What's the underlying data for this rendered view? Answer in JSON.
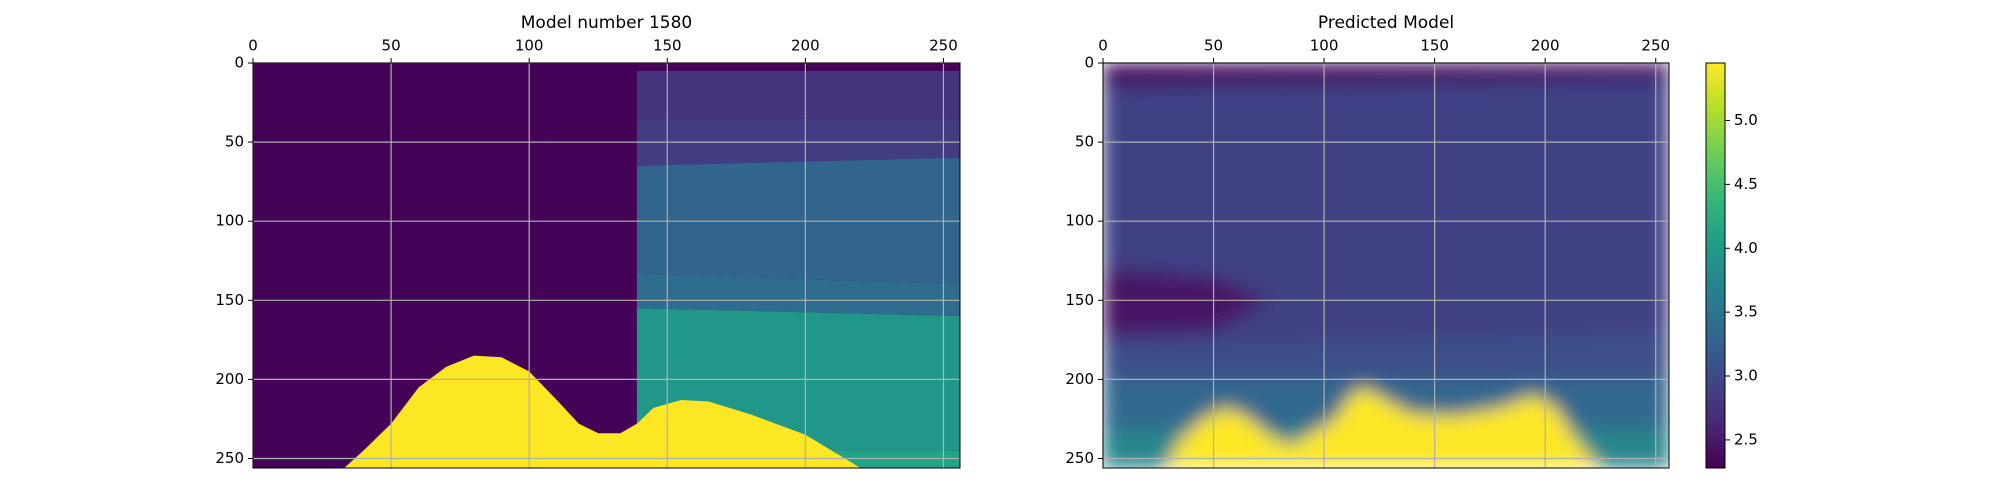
{
  "chart_data": [
    {
      "type": "heatmap",
      "title": "Model number 1580",
      "xlim": [
        0,
        256
      ],
      "ylim": [
        256,
        0
      ],
      "xticks": [
        0,
        50,
        100,
        150,
        200,
        250
      ],
      "yticks": [
        0,
        50,
        100,
        150,
        200,
        250
      ],
      "grid": true,
      "smooth": false,
      "regions": [
        {
          "value": 2.3,
          "points": [
            [
              0,
              0
            ],
            [
              256,
              0
            ],
            [
              256,
              256
            ],
            [
              0,
              256
            ]
          ]
        },
        {
          "value": 2.75,
          "points": [
            [
              139,
              5
            ],
            [
              256,
              5
            ],
            [
              256,
              35
            ],
            [
              139,
              35
            ]
          ]
        },
        {
          "value": 2.85,
          "points": [
            [
              139,
              35
            ],
            [
              256,
              35
            ],
            [
              256,
              65
            ],
            [
              139,
              65
            ]
          ]
        },
        {
          "value": 3.3,
          "points": [
            [
              139,
              65
            ],
            [
              256,
              60
            ],
            [
              256,
              140
            ],
            [
              139,
              133
            ]
          ]
        },
        {
          "value": 3.4,
          "points": [
            [
              139,
              133
            ],
            [
              256,
              140
            ],
            [
              256,
              160
            ],
            [
              139,
              155
            ]
          ]
        },
        {
          "value": 3.95,
          "points": [
            [
              139,
              155
            ],
            [
              256,
              160
            ],
            [
              256,
              245
            ],
            [
              139,
              245
            ]
          ]
        },
        {
          "value": 4.1,
          "points": [
            [
              139,
              245
            ],
            [
              256,
              245
            ],
            [
              256,
              256
            ],
            [
              139,
              256
            ]
          ]
        },
        {
          "value": 5.45,
          "points": [
            [
              33,
              256
            ],
            [
              40,
              245
            ],
            [
              50,
              228
            ],
            [
              60,
              205
            ],
            [
              70,
              192
            ],
            [
              80,
              185
            ],
            [
              90,
              186
            ],
            [
              100,
              195
            ],
            [
              110,
              213
            ],
            [
              118,
              228
            ],
            [
              125,
              234
            ],
            [
              133,
              234
            ],
            [
              139,
              228
            ],
            [
              145,
              218
            ],
            [
              155,
              213
            ],
            [
              165,
              214
            ],
            [
              180,
              222
            ],
            [
              200,
              235
            ],
            [
              220,
              256
            ]
          ]
        }
      ]
    },
    {
      "type": "heatmap",
      "title": "Predicted Model",
      "xlim": [
        0,
        256
      ],
      "ylim": [
        256,
        0
      ],
      "xticks": [
        0,
        50,
        100,
        150,
        200,
        250
      ],
      "yticks": [
        0,
        50,
        100,
        150,
        200,
        250
      ],
      "grid": true,
      "smooth": true,
      "regions": [
        {
          "value": 2.9,
          "points": [
            [
              0,
              0
            ],
            [
              256,
              0
            ],
            [
              256,
              256
            ],
            [
              0,
              256
            ]
          ]
        },
        {
          "value": 2.4,
          "points": [
            [
              0,
              0
            ],
            [
              256,
              0
            ],
            [
              256,
              10
            ],
            [
              0,
              15
            ]
          ]
        },
        {
          "value": 2.45,
          "points": [
            [
              0,
              130
            ],
            [
              50,
              135
            ],
            [
              75,
              150
            ],
            [
              50,
              170
            ],
            [
              0,
              172
            ]
          ]
        },
        {
          "value": 3.05,
          "points": [
            [
              0,
              180
            ],
            [
              256,
              170
            ],
            [
              256,
              200
            ],
            [
              0,
              200
            ]
          ]
        },
        {
          "value": 3.35,
          "points": [
            [
              0,
              200
            ],
            [
              256,
              200
            ],
            [
              256,
              232
            ],
            [
              0,
              232
            ]
          ]
        },
        {
          "value": 3.75,
          "points": [
            [
              0,
              232
            ],
            [
              256,
              232
            ],
            [
              256,
              256
            ],
            [
              0,
              256
            ]
          ]
        },
        {
          "value": 5.45,
          "points": [
            [
              28,
              256
            ],
            [
              35,
              238
            ],
            [
              45,
              225
            ],
            [
              55,
              218
            ],
            [
              65,
              223
            ],
            [
              75,
              235
            ],
            [
              85,
              242
            ],
            [
              95,
              233
            ],
            [
              105,
              225
            ],
            [
              112,
              210
            ],
            [
              118,
              205
            ],
            [
              128,
              213
            ],
            [
              140,
              222
            ],
            [
              160,
              223
            ],
            [
              180,
              218
            ],
            [
              195,
              210
            ],
            [
              205,
              218
            ],
            [
              215,
              240
            ],
            [
              225,
              256
            ]
          ]
        }
      ]
    },
    {
      "type": "colorbar",
      "ylim": [
        2.28,
        5.45
      ],
      "yticks": [
        2.5,
        {
          "value": 3,
          "label": "3.0"
        },
        3.5,
        {
          "value": 4,
          "label": "4.0"
        },
        4.5,
        {
          "value": 5,
          "label": "5.0"
        }
      ]
    }
  ]
}
